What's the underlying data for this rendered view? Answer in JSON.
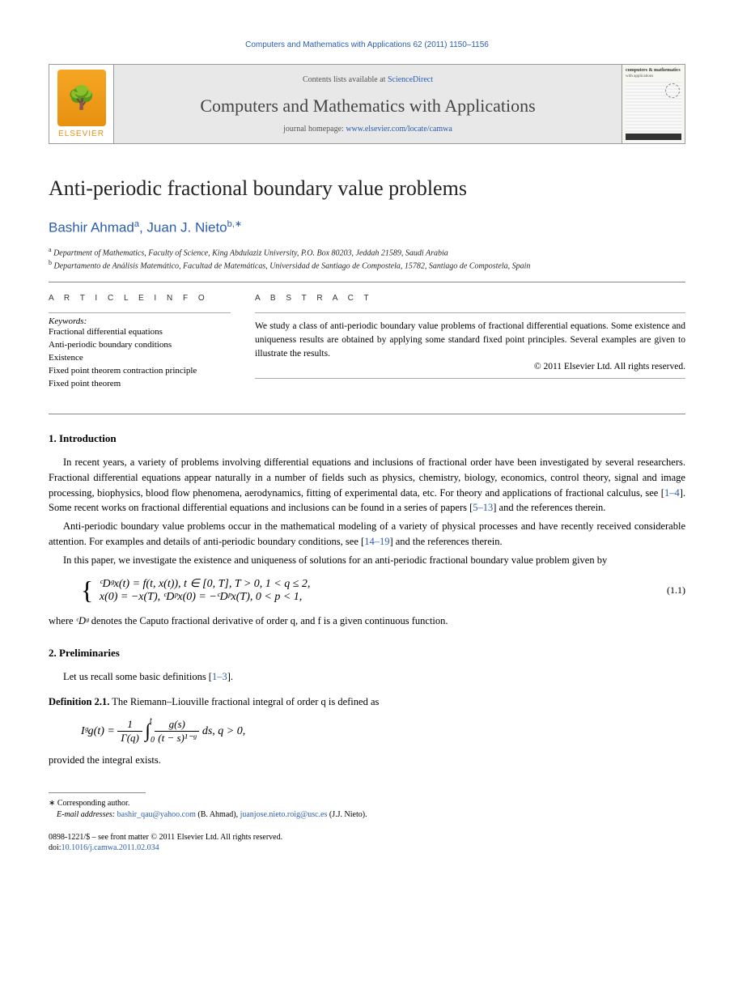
{
  "citation": "Computers and Mathematics with Applications 62 (2011) 1150–1156",
  "header": {
    "contents_prefix": "Contents lists available at ",
    "contents_link": "ScienceDirect",
    "journal_name": "Computers and Mathematics with Applications",
    "homepage_prefix": "journal homepage: ",
    "homepage_link": "www.elsevier.com/locate/camwa",
    "elsevier_label": "ELSEVIER",
    "cover_title": "computers & mathematics",
    "cover_sub": "with applications"
  },
  "title": "Anti-periodic fractional boundary value problems",
  "authors_html": "Bashir Ahmad",
  "author1": "Bashir Ahmad",
  "sup1": "a",
  "author2": "Juan J. Nieto",
  "sup2": "b,∗",
  "affiliations": [
    {
      "sup": "a",
      "text": "Department of Mathematics, Faculty of Science, King Abdulaziz University, P.O. Box 80203, Jeddah 21589, Saudi Arabia"
    },
    {
      "sup": "b",
      "text": "Departamento de Análisis Matemático, Facultad de Matemáticas, Universidad de Santiago de Compostela, 15782, Santiago de Compostela, Spain"
    }
  ],
  "info_heading": "A R T I C L E   I N F O",
  "abs_heading": "A B S T R A C T",
  "keywords_label": "Keywords:",
  "keywords": [
    "Fractional differential equations",
    "Anti-periodic boundary conditions",
    "Existence",
    "Fixed point theorem contraction principle",
    "Fixed point theorem"
  ],
  "abstract": "We study a class of anti-periodic boundary value problems of fractional differential equations. Some existence and uniqueness results are obtained by applying some standard fixed point principles. Several examples are given to illustrate the results.",
  "copyright": "© 2011 Elsevier Ltd. All rights reserved.",
  "sections": {
    "intro_head": "1.  Introduction",
    "intro_p1a": "In recent years, a variety of problems involving differential equations and inclusions of fractional order have been investigated by several researchers. Fractional differential equations appear naturally in a number of fields such as physics, chemistry, biology, economics, control theory, signal and image processing, biophysics, blood flow phenomena, aerodynamics, fitting of experimental data, etc. For theory and applications of fractional calculus, see [",
    "ref1": "1–4",
    "intro_p1b": "]. Some recent works on fractional differential equations and inclusions can be found in a series of papers [",
    "ref2": "5–13",
    "intro_p1c": "] and the references therein.",
    "intro_p2a": "Anti-periodic boundary value problems occur in the mathematical modeling of a variety of physical processes and have recently received considerable attention. For examples and details of anti-periodic boundary conditions, see [",
    "ref3": "14–19",
    "intro_p2b": "] and the references therein.",
    "intro_p3": "In this paper, we investigate the existence and uniqueness of solutions for an anti-periodic fractional boundary value problem given by",
    "eqn1_line1": "ᶜDᵍx(t) = f(t, x(t)),    t ∈ [0, T],  T > 0,  1 < q ≤ 2,",
    "eqn1_line2": "x(0) = −x(T),    ᶜDᵖx(0) = −ᶜDᵖx(T),  0 < p < 1,",
    "eqn1_no": "(1.1)",
    "intro_p4a": "where ",
    "intro_p4b": "ᶜDᵍ",
    "intro_p4c": " denotes the Caputo fractional derivative of order q, and f is a given continuous function.",
    "prelim_head": "2.  Preliminaries",
    "prelim_p1a": "Let us recall some basic definitions [",
    "ref4": "1–3",
    "prelim_p1b": "].",
    "def_label": "Definition 2.1.",
    "def_text": " The Riemann–Liouville fractional integral of order q is defined as",
    "eqn2_lhs": "Iᵍg(t) = ",
    "eqn2_frac1_num": "1",
    "eqn2_frac1_den": "Γ(q)",
    "eqn2_int_low": "0",
    "eqn2_int_high": "t",
    "eqn2_frac2_num": "g(s)",
    "eqn2_frac2_den": "(t − s)¹⁻ᵍ",
    "eqn2_tail": "ds,    q > 0,",
    "prelim_p2": "provided the integral exists."
  },
  "footer": {
    "corr": "∗ Corresponding author.",
    "email_label": "E-mail addresses: ",
    "email1": "bashir_qau@yahoo.com",
    "email1_name": " (B. Ahmad), ",
    "email2": "juanjose.nieto.roig@usc.es",
    "email2_name": " (J.J. Nieto).",
    "front_matter": "0898-1221/$ – see front matter © 2011 Elsevier Ltd. All rights reserved.",
    "doi_label": "doi:",
    "doi": "10.1016/j.camwa.2011.02.034"
  },
  "colors": {
    "link": "#2a5db0",
    "elsevier_orange": "#e89010",
    "header_bg": "#e8e8e8",
    "rule": "#888888"
  }
}
